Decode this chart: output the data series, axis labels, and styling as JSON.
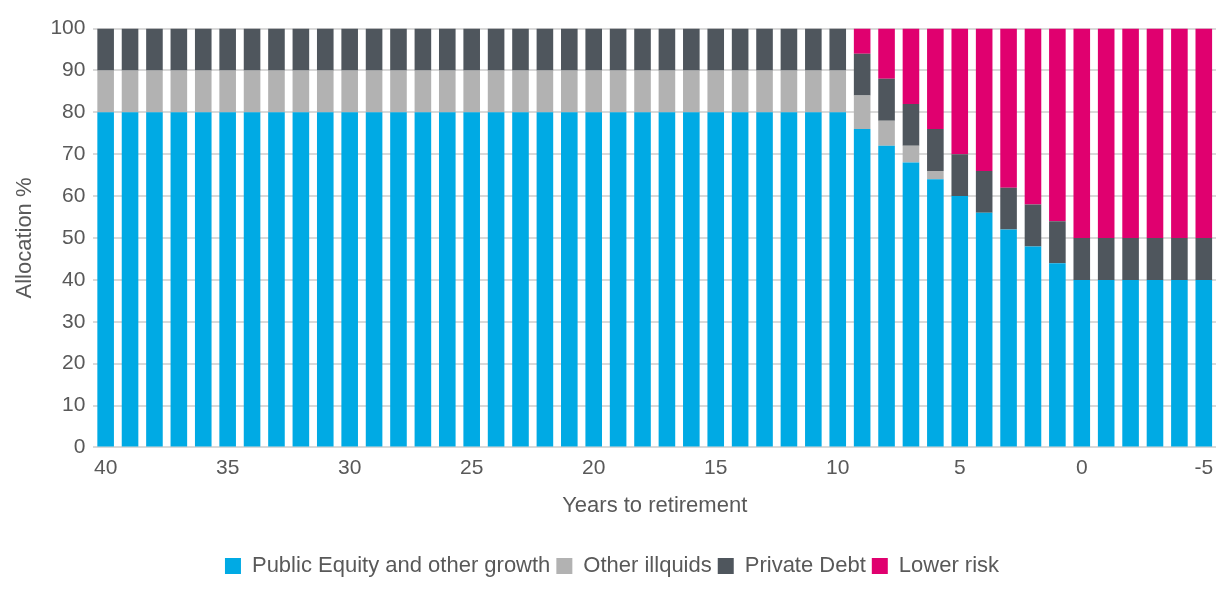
{
  "chart_data": {
    "type": "bar",
    "stacked": true,
    "xlabel": "Years to retirement",
    "ylabel": "Allocation %",
    "categories": [
      "40",
      null,
      null,
      null,
      null,
      "35",
      null,
      null,
      null,
      null,
      "30",
      null,
      null,
      null,
      null,
      "25",
      null,
      null,
      null,
      null,
      "20",
      null,
      null,
      null,
      null,
      "15",
      null,
      null,
      null,
      null,
      "10",
      null,
      null,
      null,
      null,
      "5",
      null,
      null,
      null,
      null,
      "0",
      null,
      null,
      null,
      null,
      "-5"
    ],
    "series": [
      {
        "name": "Public Equity and other growth",
        "color": "#00aae4",
        "values": [
          80,
          80,
          80,
          80,
          80,
          80,
          80,
          80,
          80,
          80,
          80,
          80,
          80,
          80,
          80,
          80,
          80,
          80,
          80,
          80,
          80,
          80,
          80,
          80,
          80,
          80,
          80,
          80,
          80,
          80,
          80,
          76,
          72,
          68,
          64,
          60,
          56,
          52,
          48,
          44,
          40,
          40,
          40,
          40,
          40,
          40
        ]
      },
      {
        "name": "Other illquids",
        "color": "#b2b2b2",
        "values": [
          10,
          10,
          10,
          10,
          10,
          10,
          10,
          10,
          10,
          10,
          10,
          10,
          10,
          10,
          10,
          10,
          10,
          10,
          10,
          10,
          10,
          10,
          10,
          10,
          10,
          10,
          10,
          10,
          10,
          10,
          10,
          8,
          6,
          4,
          2,
          0,
          0,
          0,
          0,
          0,
          0,
          0,
          0,
          0,
          0,
          0
        ]
      },
      {
        "name": "Private Debt",
        "color": "#4f565d",
        "values": [
          10,
          10,
          10,
          10,
          10,
          10,
          10,
          10,
          10,
          10,
          10,
          10,
          10,
          10,
          10,
          10,
          10,
          10,
          10,
          10,
          10,
          10,
          10,
          10,
          10,
          10,
          10,
          10,
          10,
          10,
          10,
          10,
          10,
          10,
          10,
          10,
          10,
          10,
          10,
          10,
          10,
          10,
          10,
          10,
          10,
          10
        ]
      },
      {
        "name": "Lower risk",
        "color": "#e0006f",
        "values": [
          0,
          0,
          0,
          0,
          0,
          0,
          0,
          0,
          0,
          0,
          0,
          0,
          0,
          0,
          0,
          0,
          0,
          0,
          0,
          0,
          0,
          0,
          0,
          0,
          0,
          0,
          0,
          0,
          0,
          0,
          0,
          6,
          12,
          18,
          24,
          30,
          34,
          38,
          42,
          46,
          50,
          50,
          50,
          50,
          50,
          50
        ]
      }
    ],
    "ylim": [
      0,
      100
    ],
    "yticks": [
      0,
      10,
      20,
      30,
      40,
      50,
      60,
      70,
      80,
      90,
      100
    ],
    "grid": "y",
    "legend": "bottom"
  }
}
